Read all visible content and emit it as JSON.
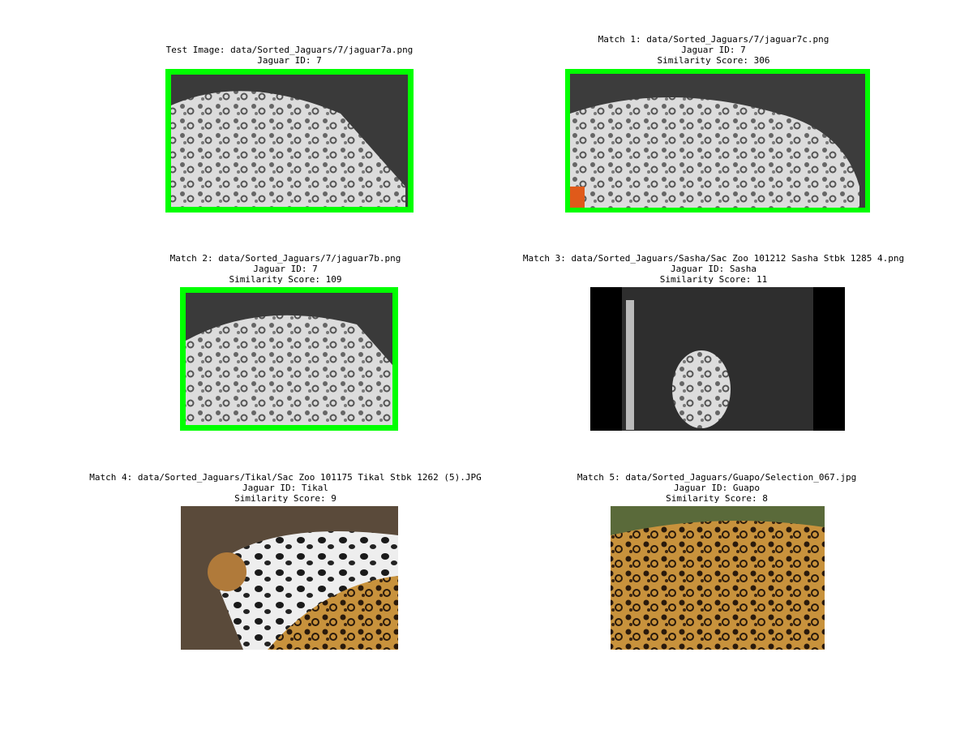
{
  "panels": [
    {
      "lines": [
        "Test Image: data/Sorted_Jaguars/7/jaguar7a.png",
        "Jaguar ID: 7"
      ]
    },
    {
      "lines": [
        "Match 1: data/Sorted_Jaguars/7/jaguar7c.png",
        "Jaguar ID: 7",
        "Similarity Score: 306"
      ]
    },
    {
      "lines": [
        "Match 2: data/Sorted_Jaguars/7/jaguar7b.png",
        "Jaguar ID: 7",
        "Similarity Score: 109"
      ]
    },
    {
      "lines": [
        "Match 3: data/Sorted_Jaguars/Sasha/Sac Zoo 101212 Sasha Stbk 1285 4.png",
        "Jaguar ID: Sasha",
        "Similarity Score: 11"
      ]
    },
    {
      "lines": [
        "Match 4: data/Sorted_Jaguars/Tikal/Sac Zoo 101175 Tikal Stbk 1262 (5).JPG",
        "Jaguar ID: Tikal",
        "Similarity Score: 9"
      ]
    },
    {
      "lines": [
        "Match 5: data/Sorted_Jaguars/Guapo/Selection_067.jpg",
        "Jaguar ID: Guapo",
        "Similarity Score: 8"
      ]
    }
  ]
}
